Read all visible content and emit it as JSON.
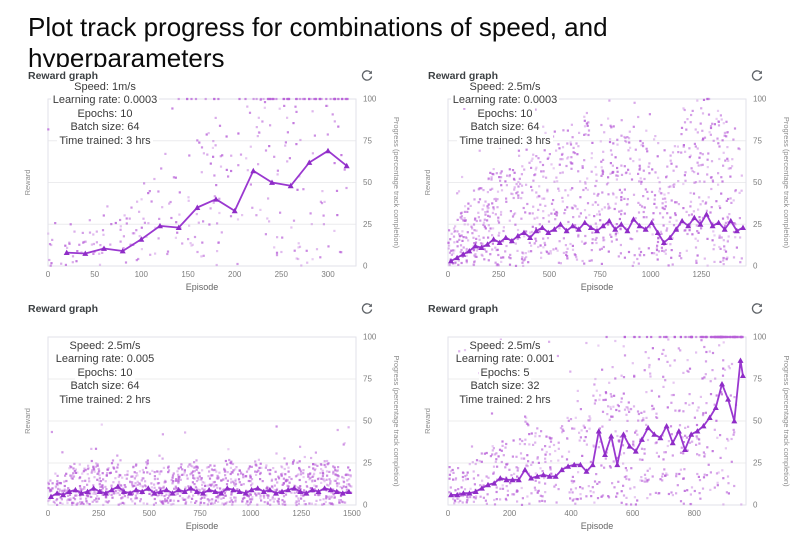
{
  "page_title": "Plot track progress for combinations of speed, and hyperparameters",
  "colors": {
    "line": "#9a38d0",
    "marker": "#8f2cc7",
    "scatter": "#b85fd8",
    "grid": "#ececee",
    "plot_border": "#e2e2ea",
    "tick_label": "#7d7d7d",
    "axis_title": "#8d8d8d",
    "header_text": "#3c4043",
    "annotation_text": "#3a3a3a",
    "icon": "#5f6368",
    "title_text": "#0b0b0b"
  },
  "charts": [
    {
      "header": "Reward graph",
      "refresh_icon": "refresh-icon",
      "annotation": {
        "lines": [
          "Speed: 1m/s",
          "Learning rate: 0.0003",
          "Epochs: 10",
          "Batch size: 64",
          "Time trained: 3 hrs"
        ]
      }
    },
    {
      "header": "Reward graph",
      "refresh_icon": "refresh-icon",
      "annotation": {
        "lines": [
          "Speed: 2.5m/s",
          "Learning rate: 0.0003",
          "Epochs: 10",
          "Batch size: 64",
          "Time trained: 3 hrs"
        ]
      }
    },
    {
      "header": "Reward graph",
      "refresh_icon": "refresh-icon",
      "annotation": {
        "lines": [
          "Speed: 2.5m/s",
          "Learning rate: 0.005",
          "Epochs: 10",
          "Batch size: 64",
          "Time trained: 2 hrs"
        ]
      }
    },
    {
      "header": "Reward graph",
      "refresh_icon": "refresh-icon",
      "annotation": {
        "lines": [
          "Speed: 2.5m/s",
          "Learning rate: 0.001",
          "Epochs: 5",
          "Batch size: 32",
          "Time trained: 2 hrs"
        ]
      }
    }
  ],
  "chart_data": [
    {
      "type": "scatter",
      "title": "Reward graph",
      "xlabel": "Episode",
      "ylabel_left": "Reward",
      "ylabel_right": "Progress (percentage track completion)",
      "x_ticks": [
        0,
        50,
        100,
        150,
        200,
        250,
        300
      ],
      "x_axis_max": 330,
      "x_data_max": 322,
      "y_ticks": [
        0,
        25,
        50,
        75,
        100
      ],
      "ylim": [
        0,
        100
      ],
      "grid": true,
      "params": {
        "speed": "1m/s",
        "learning_rate": 0.0003,
        "epochs": 10,
        "batch_size": 64,
        "time_trained": "3 hrs"
      },
      "line_series": {
        "name": "progress-moving-average",
        "points": [
          [
            20,
            8
          ],
          [
            40,
            7.5
          ],
          [
            60,
            10.5
          ],
          [
            80,
            9
          ],
          [
            100,
            16
          ],
          [
            120,
            24
          ],
          [
            140,
            23
          ],
          [
            160,
            35
          ],
          [
            180,
            40
          ],
          [
            200,
            33
          ],
          [
            220,
            57
          ],
          [
            240,
            50
          ],
          [
            260,
            48
          ],
          [
            280,
            62
          ],
          [
            300,
            69
          ],
          [
            320,
            60
          ]
        ]
      },
      "scatter": {
        "seed": 7,
        "n": 230,
        "base": 12,
        "gain": 1.9,
        "outliers": 45,
        "outlier_ymax": 100,
        "top100": {
          "n": 48,
          "xmin": 95,
          "bias": 0.55
        }
      }
    },
    {
      "type": "scatter",
      "title": "Reward graph",
      "xlabel": "Episode",
      "ylabel_left": "Reward",
      "ylabel_right": "Progress (percentage track completion)",
      "x_ticks": [
        0,
        250,
        500,
        750,
        1000,
        1250
      ],
      "x_axis_max": 1470,
      "x_data_max": 1450,
      "y_ticks": [
        0,
        25,
        50,
        75,
        100
      ],
      "ylim": [
        0,
        100
      ],
      "grid": true,
      "params": {
        "speed": "2.5m/s",
        "learning_rate": 0.0003,
        "epochs": 10,
        "batch_size": 64,
        "time_trained": "3 hrs"
      },
      "line_series": {
        "name": "progress-moving-average",
        "points": [
          [
            15,
            3
          ],
          [
            45,
            5
          ],
          [
            75,
            7
          ],
          [
            105,
            9
          ],
          [
            135,
            12
          ],
          [
            165,
            11
          ],
          [
            195,
            13
          ],
          [
            225,
            16
          ],
          [
            255,
            14
          ],
          [
            285,
            17
          ],
          [
            315,
            15
          ],
          [
            345,
            18
          ],
          [
            375,
            20
          ],
          [
            405,
            17
          ],
          [
            435,
            21
          ],
          [
            465,
            23
          ],
          [
            495,
            20
          ],
          [
            525,
            22
          ],
          [
            555,
            25
          ],
          [
            585,
            21
          ],
          [
            615,
            24
          ],
          [
            645,
            22
          ],
          [
            675,
            26
          ],
          [
            705,
            23
          ],
          [
            735,
            21
          ],
          [
            765,
            24
          ],
          [
            795,
            27
          ],
          [
            825,
            22
          ],
          [
            855,
            25
          ],
          [
            885,
            21
          ],
          [
            915,
            28
          ],
          [
            945,
            24
          ],
          [
            975,
            22
          ],
          [
            1005,
            26
          ],
          [
            1035,
            20
          ],
          [
            1065,
            14
          ],
          [
            1095,
            17
          ],
          [
            1125,
            22
          ],
          [
            1155,
            27
          ],
          [
            1185,
            24
          ],
          [
            1215,
            29
          ],
          [
            1245,
            25
          ],
          [
            1275,
            31
          ],
          [
            1305,
            24
          ],
          [
            1335,
            26
          ],
          [
            1365,
            22
          ],
          [
            1395,
            27
          ],
          [
            1425,
            21
          ],
          [
            1455,
            23
          ]
        ]
      },
      "scatter": {
        "seed": 11,
        "n": 950,
        "base": 12,
        "gain": 3.2,
        "outliers": 70,
        "outlier_ymax": 100
      }
    },
    {
      "type": "scatter",
      "title": "Reward graph",
      "xlabel": "Episode",
      "ylabel_left": "Reward",
      "ylabel_right": "Progress (percentage track completion)",
      "x_ticks": [
        0,
        250,
        500,
        750,
        1000,
        1250,
        1500
      ],
      "x_axis_max": 1520,
      "x_data_max": 1500,
      "y_ticks": [
        0,
        25,
        50,
        75,
        100
      ],
      "ylim": [
        0,
        100
      ],
      "grid": true,
      "params": {
        "speed": "2.5m/s",
        "learning_rate": 0.005,
        "epochs": 10,
        "batch_size": 64,
        "time_trained": "2 hrs"
      },
      "line_series": {
        "name": "progress-moving-average",
        "points": [
          [
            15,
            5
          ],
          [
            45,
            7
          ],
          [
            75,
            6
          ],
          [
            105,
            8
          ],
          [
            135,
            9
          ],
          [
            165,
            7
          ],
          [
            195,
            8
          ],
          [
            225,
            10
          ],
          [
            255,
            8
          ],
          [
            285,
            7
          ],
          [
            315,
            9
          ],
          [
            345,
            11
          ],
          [
            375,
            8
          ],
          [
            405,
            7
          ],
          [
            435,
            9
          ],
          [
            465,
            8
          ],
          [
            495,
            10
          ],
          [
            525,
            7
          ],
          [
            555,
            8
          ],
          [
            585,
            9
          ],
          [
            615,
            7
          ],
          [
            645,
            9
          ],
          [
            675,
            8
          ],
          [
            705,
            10
          ],
          [
            735,
            8
          ],
          [
            765,
            7
          ],
          [
            795,
            9
          ],
          [
            825,
            8
          ],
          [
            855,
            7
          ],
          [
            885,
            10
          ],
          [
            915,
            9
          ],
          [
            945,
            8
          ],
          [
            975,
            7
          ],
          [
            1005,
            9
          ],
          [
            1035,
            10
          ],
          [
            1065,
            8
          ],
          [
            1095,
            9
          ],
          [
            1125,
            7
          ],
          [
            1155,
            8
          ],
          [
            1185,
            9
          ],
          [
            1215,
            10
          ],
          [
            1245,
            8
          ],
          [
            1275,
            7
          ],
          [
            1305,
            9
          ],
          [
            1335,
            8
          ],
          [
            1365,
            10
          ],
          [
            1395,
            9
          ],
          [
            1425,
            8
          ],
          [
            1455,
            7
          ],
          [
            1485,
            8
          ]
        ]
      },
      "scatter": {
        "seed": 13,
        "n": 950,
        "base": 4,
        "gain": 2.4,
        "outliers": 55,
        "outlier_ymax": 52
      }
    },
    {
      "type": "scatter",
      "title": "Reward graph",
      "xlabel": "Episode",
      "ylabel_left": "Reward",
      "ylabel_right": "Progress (percentage track completion)",
      "x_ticks": [
        0,
        200,
        400,
        600,
        800
      ],
      "x_axis_max": 968,
      "x_data_max": 958,
      "y_ticks": [
        0,
        25,
        50,
        75,
        100
      ],
      "ylim": [
        0,
        100
      ],
      "grid": true,
      "params": {
        "speed": "2.5m/s",
        "learning_rate": 0.001,
        "epochs": 5,
        "batch_size": 32,
        "time_trained": "2 hrs"
      },
      "line_series": {
        "name": "progress-moving-average",
        "points": [
          [
            10,
            6
          ],
          [
            30,
            6
          ],
          [
            50,
            7
          ],
          [
            70,
            7
          ],
          [
            90,
            8
          ],
          [
            110,
            10
          ],
          [
            130,
            12
          ],
          [
            150,
            13
          ],
          [
            170,
            16
          ],
          [
            190,
            15
          ],
          [
            210,
            15
          ],
          [
            230,
            15
          ],
          [
            250,
            21
          ],
          [
            270,
            16
          ],
          [
            290,
            17
          ],
          [
            310,
            18
          ],
          [
            330,
            17
          ],
          [
            350,
            17
          ],
          [
            370,
            21
          ],
          [
            390,
            23
          ],
          [
            410,
            24
          ],
          [
            430,
            24
          ],
          [
            450,
            20
          ],
          [
            470,
            24
          ],
          [
            490,
            44
          ],
          [
            510,
            30
          ],
          [
            530,
            41
          ],
          [
            550,
            24
          ],
          [
            570,
            42
          ],
          [
            590,
            35
          ],
          [
            610,
            32
          ],
          [
            630,
            39
          ],
          [
            650,
            46
          ],
          [
            670,
            42
          ],
          [
            690,
            40
          ],
          [
            710,
            47
          ],
          [
            730,
            37
          ],
          [
            750,
            44
          ],
          [
            770,
            33
          ],
          [
            790,
            42
          ],
          [
            810,
            44
          ],
          [
            830,
            47
          ],
          [
            850,
            52
          ],
          [
            870,
            58
          ],
          [
            890,
            72
          ],
          [
            910,
            63
          ],
          [
            930,
            50
          ],
          [
            950,
            86
          ],
          [
            958,
            77
          ]
        ]
      },
      "scatter": {
        "seed": 17,
        "n": 620,
        "base": 10,
        "gain": 2.1,
        "outliers": 70,
        "outlier_ymax": 100,
        "top100": {
          "n": 85,
          "xmin": 455,
          "bias": 0.42
        }
      }
    }
  ]
}
